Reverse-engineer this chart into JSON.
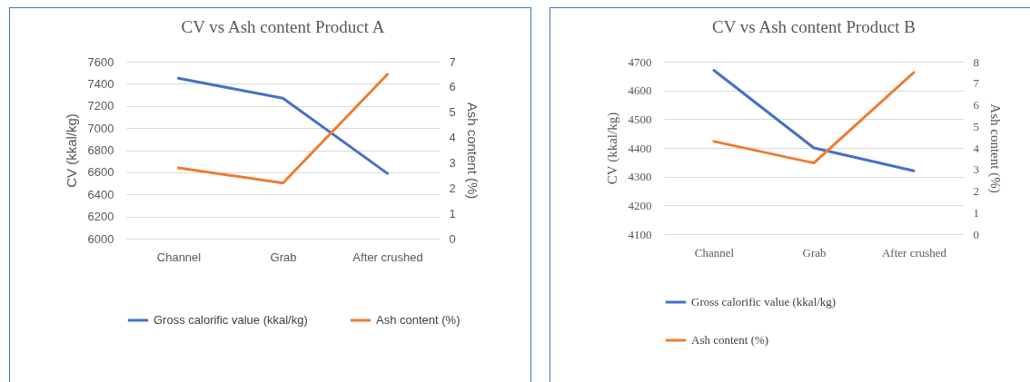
{
  "chart_data": [
    {
      "type": "line",
      "title": "CV vs Ash content Product A",
      "ylabel": "CV (kkal/kg)",
      "y2label": "Ash content (%)",
      "categories": [
        "Channel",
        "Grab",
        "After crushed"
      ],
      "series": [
        {
          "name": "Gross calorific value (kkal/kg)",
          "color": "#4472c4",
          "values": [
            7450,
            7270,
            6590
          ]
        },
        {
          "name": "Ash content (%)",
          "color": "#ed7d31",
          "values": [
            2.8,
            2.2,
            6.5
          ],
          "axis": "y2"
        }
      ],
      "ylim": [
        6000,
        7600
      ],
      "yticks": [
        6000,
        6200,
        6400,
        6600,
        6800,
        7000,
        7200,
        7400,
        7600
      ],
      "y2lim": [
        0,
        7
      ],
      "y2ticks": [
        0,
        1,
        2,
        3,
        4,
        5,
        6,
        7
      ],
      "grid": "y",
      "legend": "bottom"
    },
    {
      "type": "line",
      "title": "CV vs Ash content Product B",
      "ylabel": "CV (kkal/kg)",
      "y2label": "Ash content (%)",
      "categories": [
        "Channel",
        "Grab",
        "After crushed"
      ],
      "series": [
        {
          "name": "Gross calorific value (kkal/kg)",
          "color": "#4472c4",
          "values": [
            4670,
            4400,
            4320
          ]
        },
        {
          "name": "Ash content (%)",
          "color": "#ed7d31",
          "values": [
            4.3,
            3.3,
            7.5
          ],
          "axis": "y2"
        }
      ],
      "ylim": [
        4100,
        4700
      ],
      "yticks": [
        4100,
        4200,
        4300,
        4400,
        4500,
        4600,
        4700
      ],
      "y2lim": [
        0,
        8
      ],
      "y2ticks": [
        0,
        1,
        2,
        3,
        4,
        5,
        6,
        7,
        8
      ],
      "grid": "y",
      "legend": "bottom"
    }
  ]
}
